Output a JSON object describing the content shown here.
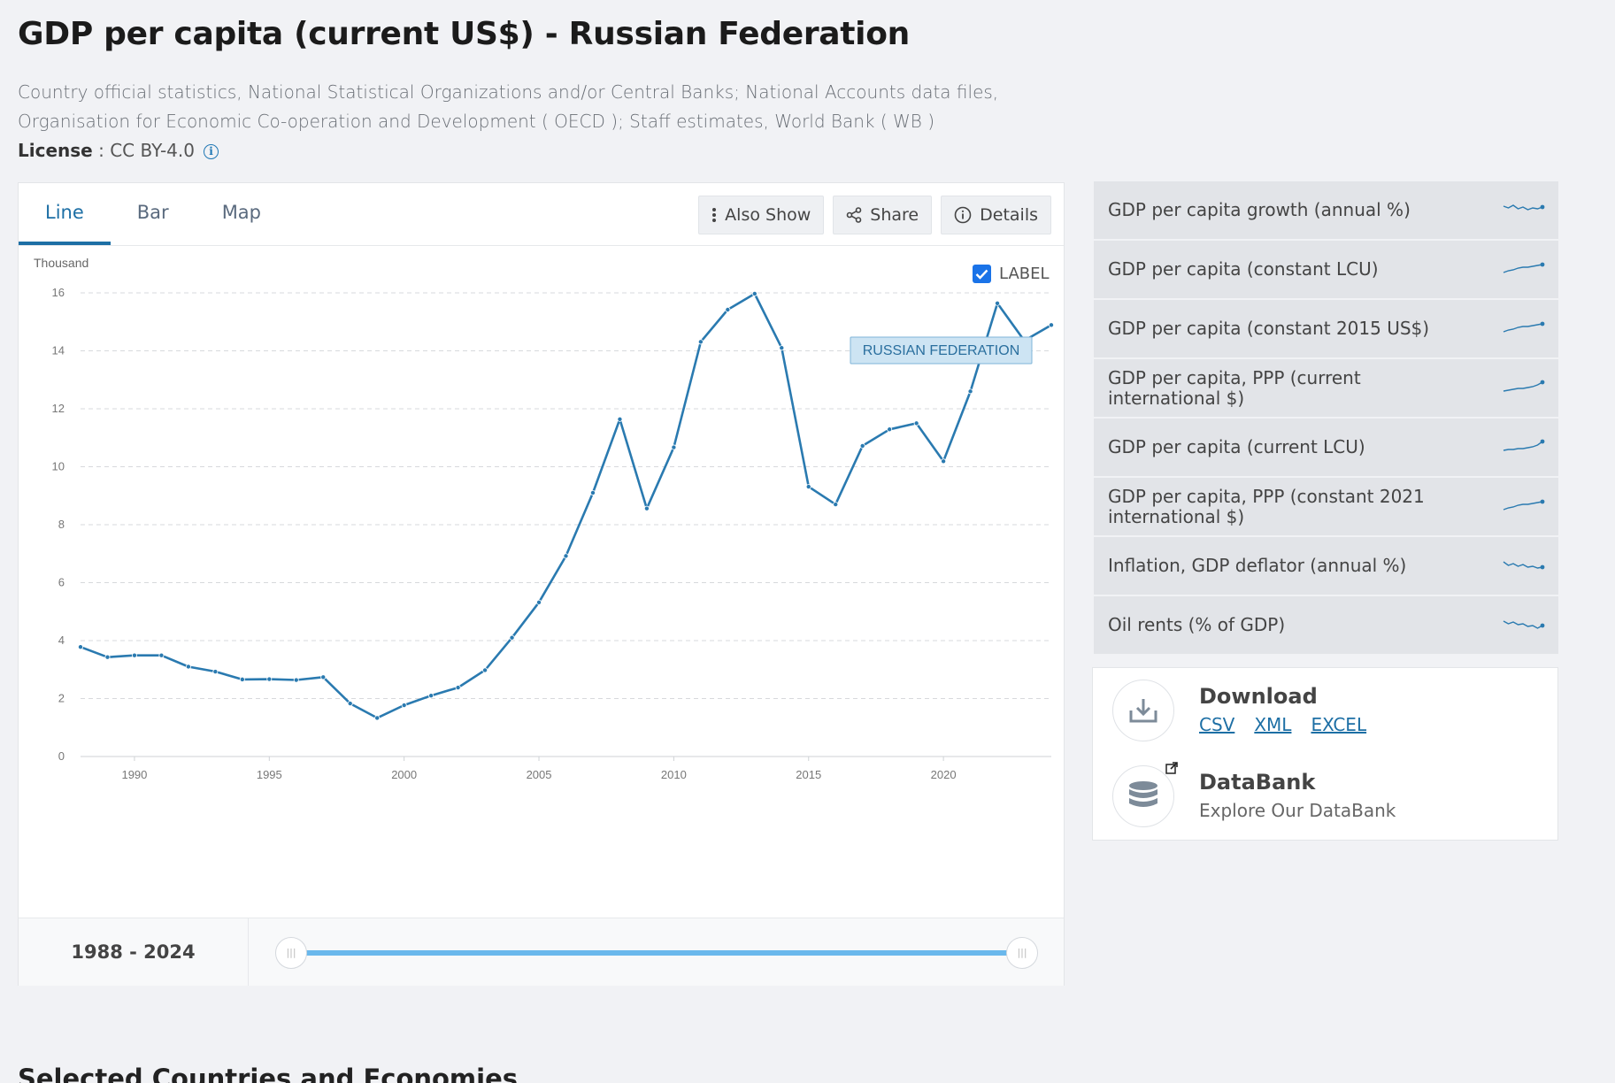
{
  "page": {
    "title": "GDP per capita (current US$) - Russian Federation",
    "source": "Country official statistics, National Statistical Organizations and/or Central Banks; National Accounts data files, Organisation for Economic Co-operation and Development ( OECD ); Staff estimates, World Bank ( WB )",
    "license_label": "License",
    "license_value": " : CC BY-4.0",
    "info_icon": "i"
  },
  "tabs": [
    {
      "label": "Line",
      "active": true
    },
    {
      "label": "Bar",
      "active": false
    },
    {
      "label": "Map",
      "active": false
    }
  ],
  "toolbar": {
    "also_show": "Also Show",
    "share": "Share",
    "details": "Details"
  },
  "label_toggle": {
    "text": "LABEL",
    "checked": true
  },
  "chart_data": {
    "type": "line",
    "ylabel": "Thousand",
    "ylim": [
      0,
      16
    ],
    "yticks": [
      0,
      2,
      4,
      6,
      8,
      10,
      12,
      14,
      16
    ],
    "xticks": [
      1990,
      1995,
      2000,
      2005,
      2010,
      2015,
      2020
    ],
    "xlim": [
      1988,
      2024
    ],
    "grid": true,
    "series": [
      {
        "name": "RUSSIAN FEDERATION",
        "color": "#2a7ab0",
        "x": [
          1988,
          1989,
          1990,
          1991,
          1992,
          1993,
          1994,
          1995,
          1996,
          1997,
          1998,
          1999,
          2000,
          2001,
          2002,
          2003,
          2004,
          2005,
          2006,
          2007,
          2008,
          2009,
          2010,
          2011,
          2012,
          2013,
          2014,
          2015,
          2016,
          2017,
          2018,
          2019,
          2020,
          2021,
          2022,
          2023,
          2024
        ],
        "values": [
          3.78,
          3.43,
          3.49,
          3.49,
          3.1,
          2.93,
          2.66,
          2.67,
          2.64,
          2.74,
          1.83,
          1.33,
          1.77,
          2.1,
          2.38,
          2.98,
          4.1,
          5.32,
          6.92,
          9.1,
          11.64,
          8.56,
          10.67,
          14.31,
          15.42,
          15.97,
          14.1,
          9.31,
          8.7,
          10.72,
          11.29,
          11.5,
          10.19,
          12.6,
          15.64,
          14.35,
          14.89
        ]
      }
    ]
  },
  "range": {
    "label": "1988 - 2024",
    "handle_glyph": "|||"
  },
  "related": [
    "GDP per capita growth (annual %)",
    "GDP per capita (constant LCU)",
    "GDP per capita (constant 2015 US$)",
    "GDP per capita, PPP (current international $)",
    "GDP per capita (current LCU)",
    "GDP per capita, PPP (constant 2021 international $)",
    "Inflation, GDP deflator (annual %)",
    "Oil rents (% of GDP)"
  ],
  "download": {
    "title": "Download",
    "links": [
      "CSV",
      "XML",
      "EXCEL"
    ]
  },
  "databank": {
    "title": "DataBank",
    "subtitle": "Explore Our DataBank"
  },
  "selected_heading": "Selected Countries and Economies",
  "colors": {
    "accent": "#1d6fa5",
    "line": "#2a7ab0",
    "slider": "#6ab8ec"
  }
}
